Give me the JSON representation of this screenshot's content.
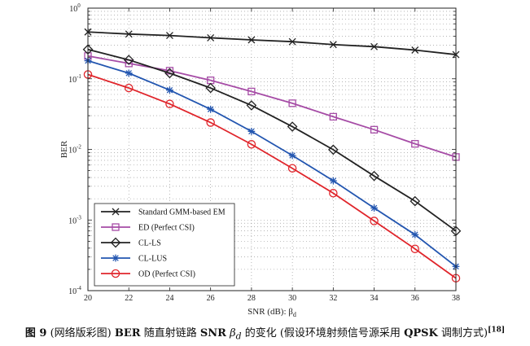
{
  "chart_data": {
    "type": "line",
    "xlabel": "SNR (dB): β",
    "xlabel_sub": "d",
    "ylabel": "BER",
    "y_scale": "log",
    "xlim": [
      20,
      38
    ],
    "ylim": [
      0.0001,
      1
    ],
    "x_ticks": [
      20,
      22,
      24,
      26,
      28,
      30,
      32,
      34,
      36,
      38
    ],
    "x_tick_labels": [
      "20",
      "22",
      "24",
      "26",
      "28",
      "30",
      "32",
      "34",
      "36",
      "38"
    ],
    "y_ticks": [
      {
        "value": 1,
        "base": "10",
        "exp": "0"
      },
      {
        "value": 0.1,
        "base": "10",
        "exp": "-1"
      },
      {
        "value": 0.01,
        "base": "10",
        "exp": "-2"
      },
      {
        "value": 0.001,
        "base": "10",
        "exp": "-3"
      },
      {
        "value": 0.0001,
        "base": "10",
        "exp": "-4"
      }
    ],
    "grid": true,
    "legend_position": "bottom-left",
    "x": [
      20,
      22,
      24,
      26,
      28,
      30,
      32,
      34,
      36,
      38
    ],
    "series": [
      {
        "name": "Standard GMM-based EM",
        "color": "#222222",
        "marker": "x",
        "x": [
          20,
          22,
          24,
          26,
          28,
          30,
          32,
          34,
          36,
          38
        ],
        "values": [
          0.46,
          0.43,
          0.41,
          0.38,
          0.355,
          0.335,
          0.305,
          0.285,
          0.255,
          0.22
        ]
      },
      {
        "name": "ED (Perfect CSI)",
        "color": "#a64ca6",
        "marker": "square",
        "x": [
          20,
          22,
          24,
          26,
          28,
          30,
          32,
          34,
          36,
          38
        ],
        "values": [
          0.21,
          0.165,
          0.13,
          0.095,
          0.066,
          0.045,
          0.029,
          0.019,
          0.012,
          0.0078
        ]
      },
      {
        "name": "CL-LS",
        "color": "#222222",
        "marker": "diamond",
        "x": [
          20,
          22,
          24,
          26,
          28,
          30,
          32,
          34,
          36,
          38
        ],
        "values": [
          0.26,
          0.185,
          0.12,
          0.074,
          0.042,
          0.021,
          0.0099,
          0.0042,
          0.00185,
          0.0007
        ]
      },
      {
        "name": "CL-LUS",
        "color": "#2356b0",
        "marker": "star",
        "x": [
          20,
          22,
          24,
          26,
          28,
          30,
          32,
          34,
          36,
          38
        ],
        "values": [
          0.18,
          0.12,
          0.069,
          0.037,
          0.018,
          0.0082,
          0.0036,
          0.00148,
          0.00062,
          0.00022
        ]
      },
      {
        "name": "OD (Perfect CSI)",
        "color": "#e0252b",
        "marker": "circle",
        "x": [
          20,
          22,
          24,
          26,
          28,
          30,
          32,
          34,
          36,
          38
        ],
        "values": [
          0.115,
          0.074,
          0.044,
          0.024,
          0.0118,
          0.0054,
          0.0024,
          0.00097,
          0.00039,
          0.00015
        ]
      }
    ]
  },
  "caption": {
    "label": "图 9",
    "part1": "(网络版彩图)",
    "ber": "BER",
    "part2": "随直射链路",
    "snr": "SNR",
    "beta": "β",
    "beta_sub": "d",
    "part3": "的变化 (假设环境射频信号源采用",
    "qpsk": "QPSK",
    "part4": "调制方式)",
    "ref": "[18]"
  }
}
